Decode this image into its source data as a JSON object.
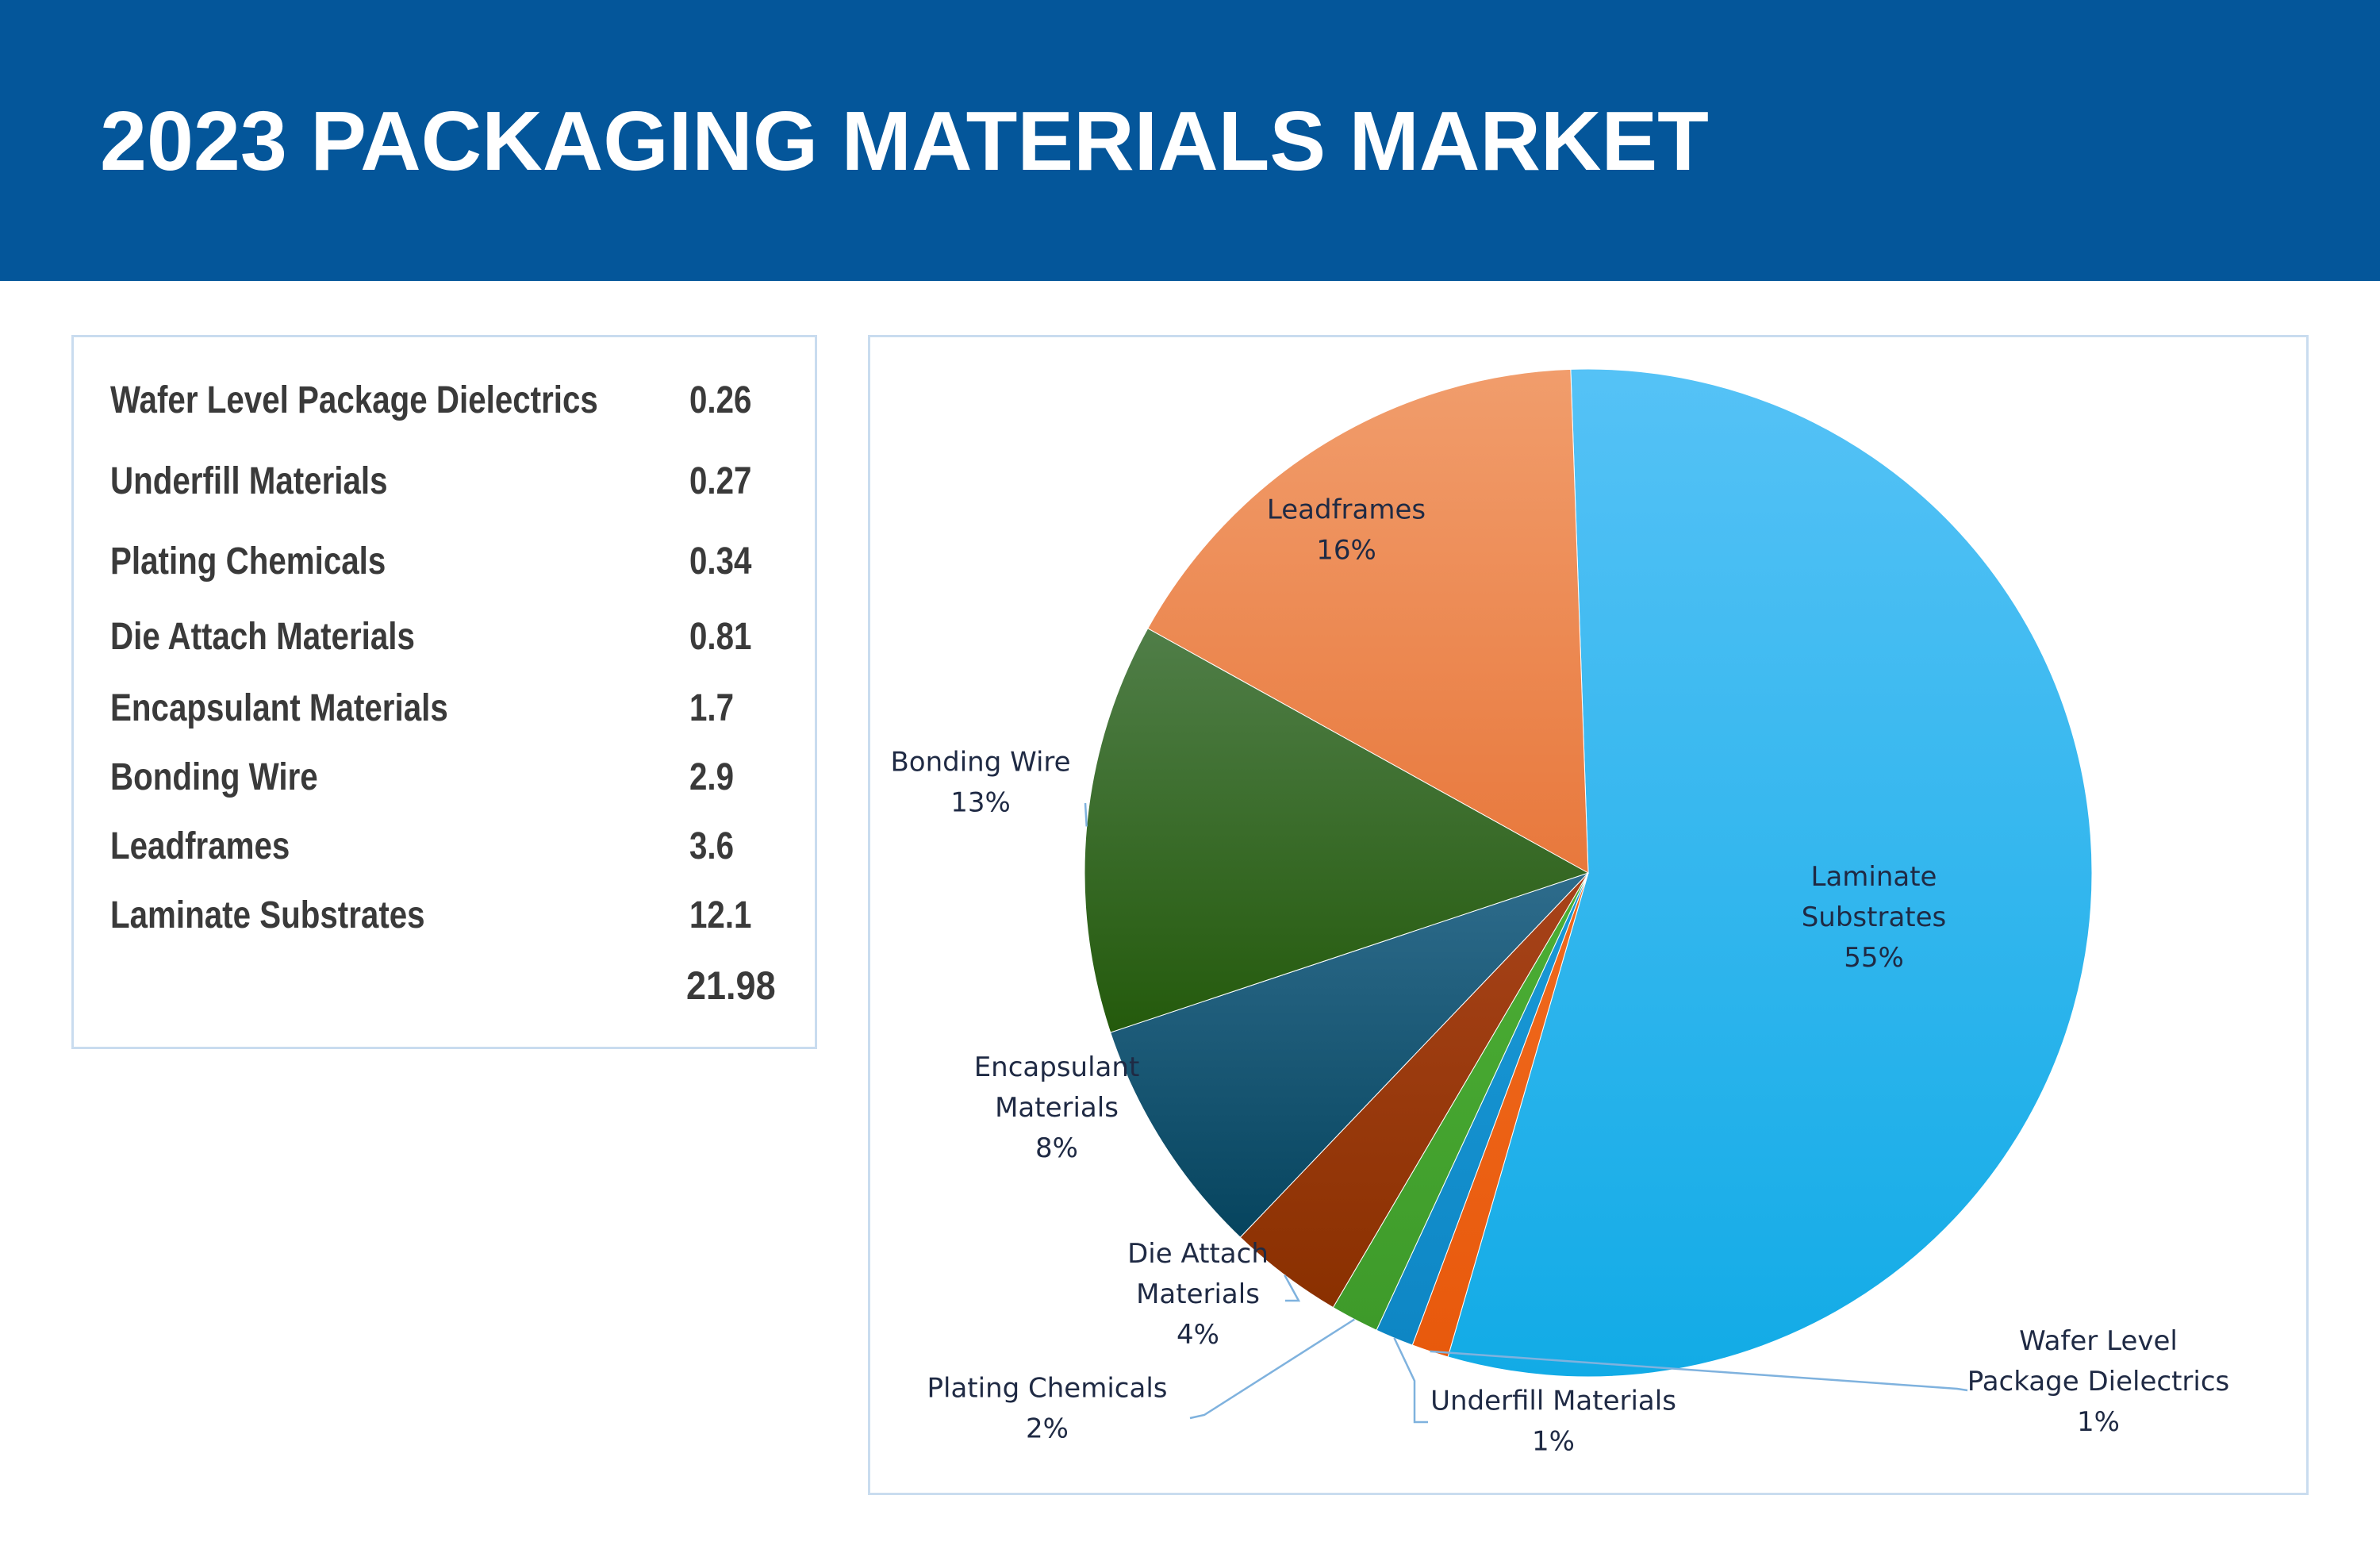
{
  "title": "2023 PACKAGING MATERIALS MARKET",
  "table": {
    "rows": [
      {
        "label": "Wafer Level Package Dielectrics",
        "value": "0.26"
      },
      {
        "label": "Underfill Materials",
        "value": "0.27"
      },
      {
        "label": "Plating Chemicals",
        "value": "0.34"
      },
      {
        "label": "Die Attach Materials",
        "value": "0.81"
      },
      {
        "label": "Encapsulant Materials",
        "value": "1.7"
      },
      {
        "label": "Bonding Wire",
        "value": "2.9"
      },
      {
        "label": "Leadframes",
        "value": "3.6"
      },
      {
        "label": "Laminate Substrates",
        "value": "12.1"
      }
    ],
    "total": "21.98"
  },
  "chart_data": {
    "type": "pie",
    "categories": [
      "Laminate Substrates",
      "Wafer Level Package Dielectrics",
      "Underfill Materials",
      "Plating Chemicals",
      "Die Attach Materials",
      "Encapsulant Materials",
      "Bonding Wire",
      "Leadframes"
    ],
    "values": [
      12.1,
      0.26,
      0.27,
      0.34,
      0.81,
      1.7,
      2.9,
      3.6
    ],
    "data_labels": [
      {
        "lines": [
          "Laminate",
          "Substrates",
          "55%"
        ]
      },
      {
        "lines": [
          "Wafer Level",
          "Package Dielectrics",
          "1%"
        ]
      },
      {
        "lines": [
          "Underfill Materials",
          "1%"
        ]
      },
      {
        "lines": [
          "Plating Chemicals",
          "2%"
        ]
      },
      {
        "lines": [
          "Die Attach",
          "Materials",
          "4%"
        ]
      },
      {
        "lines": [
          "Encapsulant",
          "Materials",
          "8%"
        ]
      },
      {
        "lines": [
          "Bonding Wire",
          "13%"
        ]
      },
      {
        "lines": [
          "Leadframes",
          "16%"
        ]
      }
    ],
    "colors": [
      {
        "light": "#55C2F6",
        "dark": "#12ABE6"
      },
      {
        "light": "#F06A1E",
        "dark": "#E8590C"
      },
      {
        "light": "#1A9AD8",
        "dark": "#0E86C4"
      },
      {
        "light": "#4CAF35",
        "dark": "#3E9A2A"
      },
      {
        "light": "#A8431A",
        "dark": "#8A3000"
      },
      {
        "light": "#2E6C8C",
        "dark": "#06445E"
      },
      {
        "light": "#507E48",
        "dark": "#245A0C"
      },
      {
        "light": "#F19D6C",
        "dark": "#E8783C"
      }
    ],
    "start_angle_deg": -2,
    "direction": "clockwise",
    "legend": "none",
    "label_lines": true
  }
}
